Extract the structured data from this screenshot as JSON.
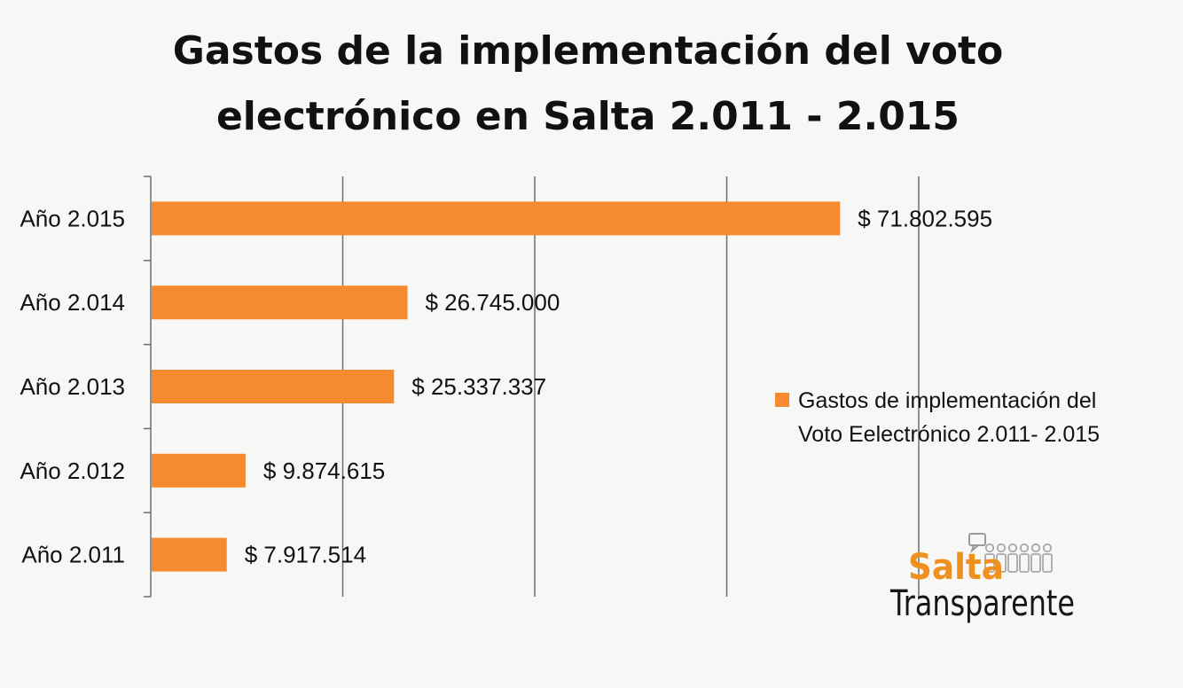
{
  "chart_data": {
    "type": "bar",
    "orientation": "horizontal",
    "title_lines": [
      "Gastos de la implementación del voto",
      "electrónico en Salta 2.011 - 2.015"
    ],
    "categories": [
      "Año 2.015",
      "Año 2.014",
      "Año 2.013",
      "Año 2.012",
      "Año 2.011"
    ],
    "series": [
      {
        "name_lines": [
          "Gastos de implementación del",
          "Voto Eelectrónico 2.011- 2.015"
        ],
        "values": [
          71802595,
          26745000,
          25337337,
          9874615,
          7917514
        ],
        "labels": [
          "$ 71.802.595",
          "$ 26.745.000",
          "$ 25.337.337",
          "$ 9.874.615",
          "$ 7.917.514"
        ],
        "color": "#f58a2e"
      }
    ],
    "xlim": [
      0,
      80000000
    ],
    "x_gridline_step": 20000000,
    "x_tick_labels_visible": false,
    "grid": "vertical",
    "legend_position": "right",
    "logo_alt_name": "salta-transparente-logo",
    "logo_text": [
      "Salta",
      "Transparente"
    ]
  }
}
